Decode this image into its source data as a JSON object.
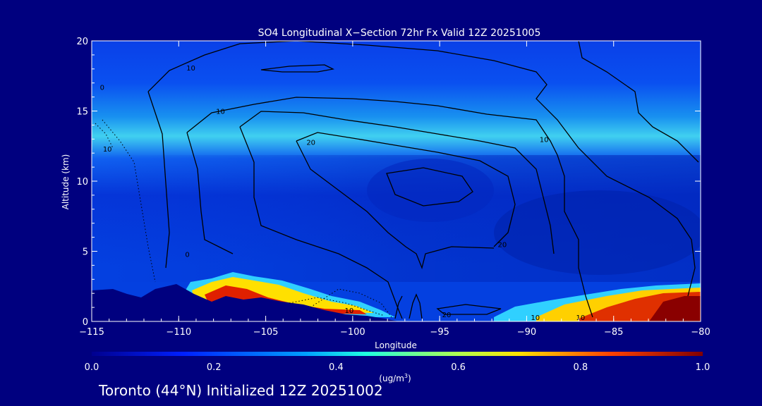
{
  "chart_data": {
    "type": "heatmap",
    "title": "SO4 Longitudinal X−Section 72hr  Fx Valid 12Z 20251005",
    "xlabel": "Longitude",
    "ylabel": "Altitude (km)",
    "xlim": [
      -115,
      -80
    ],
    "ylim": [
      0,
      20
    ],
    "x_ticks": [
      "−115",
      "−110",
      "−105",
      "−100",
      "−95",
      "−90",
      "−85",
      "−80"
    ],
    "y_ticks": [
      "0",
      "5",
      "10",
      "15",
      "20"
    ],
    "colorbar": {
      "min": 0.0,
      "max": 1.0,
      "ticks": [
        "0.0",
        "0.2",
        "0.4",
        "0.6",
        "0.8",
        "1.0"
      ],
      "units_prefix": "(ug/m",
      "units_exp": "3",
      "units_suffix": ")"
    },
    "contour_labels": [
      {
        "text": "10",
        "lon": -109.3,
        "alt": 18.1
      },
      {
        "text": "10",
        "lon": -107.6,
        "alt": 15.0
      },
      {
        "text": "20",
        "lon": -102.4,
        "alt": 12.8
      },
      {
        "text": "10",
        "lon": -89.0,
        "alt": 13.0
      },
      {
        "text": "20",
        "lon": -91.4,
        "alt": 5.5
      },
      {
        "text": "20",
        "lon": -94.6,
        "alt": 0.5
      },
      {
        "text": "10",
        "lon": -100.2,
        "alt": 0.8
      },
      {
        "text": "10",
        "lon": -89.5,
        "alt": 0.3
      },
      {
        "text": "10",
        "lon": -86.9,
        "alt": 0.3
      },
      {
        "text": "0",
        "lon": -114.4,
        "alt": 16.7
      },
      {
        "text": "10",
        "lon": -114.1,
        "alt": 12.3
      },
      {
        "text": "0",
        "lon": -109.5,
        "alt": 4.8
      }
    ]
  },
  "footer": {
    "city": "Toronto",
    "lat": "(44°N)",
    "init": "Initialized 12Z 20251002"
  }
}
